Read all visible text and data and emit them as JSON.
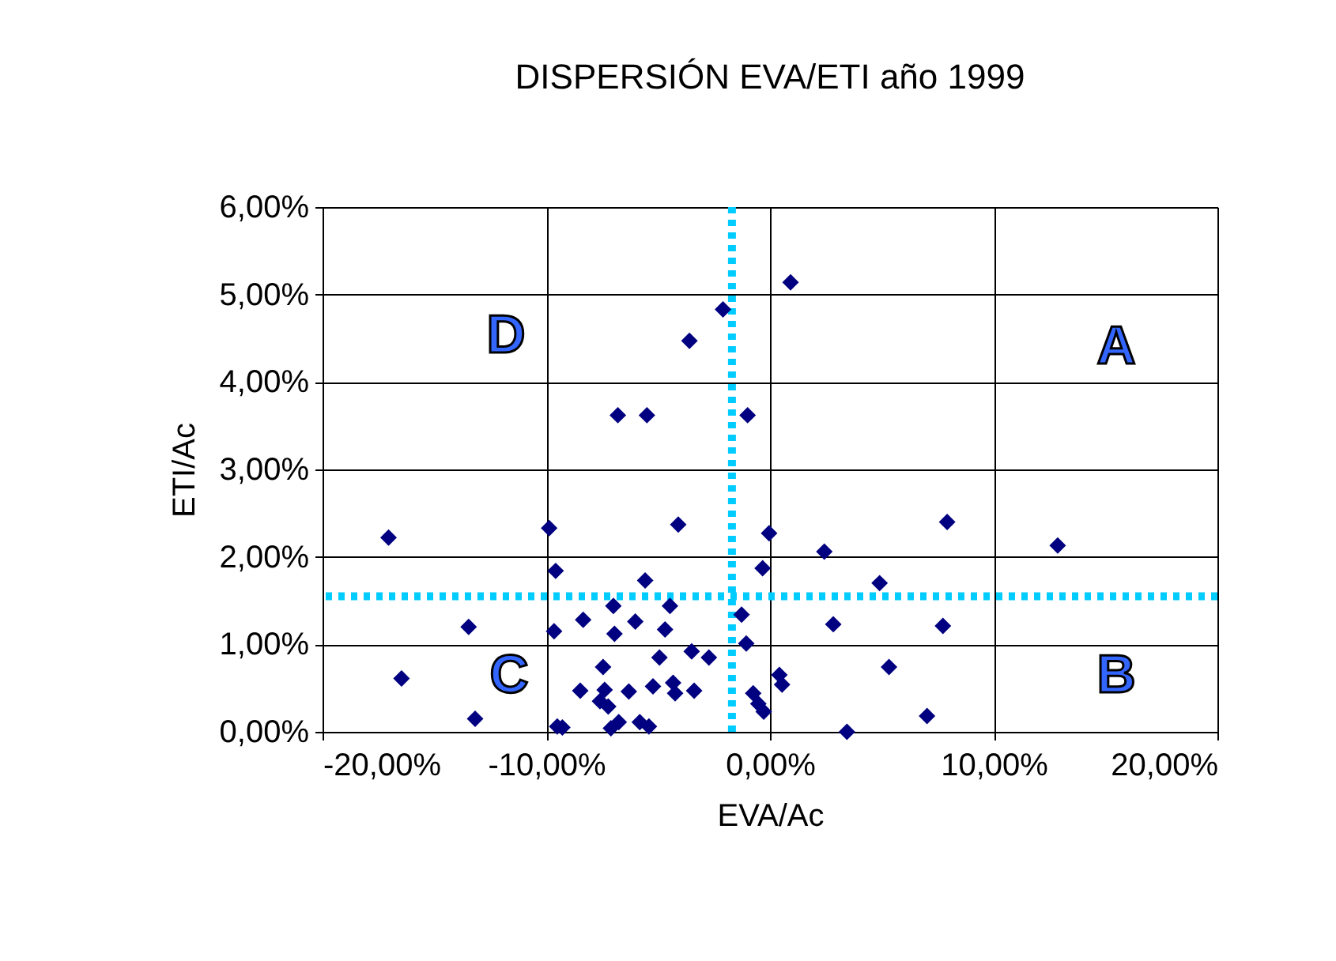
{
  "chart_data": {
    "type": "scatter",
    "title": "DISPERSIÓN EVA/ETI año 1999",
    "xlabel": "EVA/Ac",
    "ylabel": "ETI/Ac",
    "x": [
      0.92,
      -2.1,
      -3.6,
      -6.8,
      -5.5,
      -1.0,
      -17.05,
      -9.87,
      -4.1,
      -0.04,
      -9.58,
      -0.33,
      -5.58,
      -7.0,
      -4.47,
      -1.27,
      -8.35,
      -6.02,
      -13.47,
      -9.65,
      -6.95,
      -4.69,
      -1.06,
      -3.5,
      -2.73,
      -4.94,
      -7.46,
      -16.47,
      0.42,
      0.54,
      -8.48,
      -7.39,
      -6.31,
      -5.23,
      -4.33,
      -4.24,
      -3.39,
      -7.6,
      -7.23,
      -0.75,
      -0.28,
      -0.52,
      -13.18,
      -9.51,
      -9.28,
      -7.11,
      -6.76,
      -5.82,
      -5.41,
      7.92,
      12.86,
      2.43,
      4.9,
      2.83,
      7.73,
      5.32,
      7.02,
      3.44
    ],
    "series": [
      {
        "color": "#000080",
        "values": [
          5.14,
          4.83,
          4.47,
          3.62,
          3.62,
          3.62,
          2.22,
          2.33,
          2.37,
          2.27,
          1.84,
          1.87,
          1.73,
          1.44,
          1.44,
          1.34,
          1.28,
          1.26,
          1.2,
          1.15,
          1.12,
          1.17,
          1.01,
          0.92,
          0.85,
          0.85,
          0.74,
          0.61,
          0.65,
          0.54,
          0.47,
          0.48,
          0.46,
          0.52,
          0.56,
          0.44,
          0.47,
          0.35,
          0.29,
          0.44,
          0.23,
          0.32,
          0.15,
          0.06,
          0.05,
          0.04,
          0.11,
          0.11,
          0.06,
          2.4,
          2.13,
          2.06,
          1.7,
          1.23,
          1.21,
          0.74,
          0.18,
          0.0
        ]
      }
    ],
    "xlim": [
      -20,
      20
    ],
    "ylim": [
      0,
      6
    ],
    "xticks": [
      {
        "value": -20,
        "label": "-20,00%"
      },
      {
        "value": -10,
        "label": "-10,00%"
      },
      {
        "value": 0,
        "label": "0,00%"
      },
      {
        "value": 10,
        "label": "10,00%"
      },
      {
        "value": 20,
        "label": "20,00%"
      }
    ],
    "yticks": [
      {
        "value": 0,
        "label": "0,00%"
      },
      {
        "value": 1,
        "label": "1,00%"
      },
      {
        "value": 2,
        "label": "2,00%"
      },
      {
        "value": 3,
        "label": "3,00%"
      },
      {
        "value": 4,
        "label": "4,00%"
      },
      {
        "value": 5,
        "label": "5,00%"
      },
      {
        "value": 6,
        "label": "6,00%"
      }
    ],
    "ref_lines": [
      {
        "axis": "x",
        "value": -1.7,
        "color": "#00ccff",
        "line_style": "dotted"
      },
      {
        "axis": "y",
        "value": 1.55,
        "color": "#00ccff",
        "line_style": "dotted"
      }
    ],
    "annotations": [
      "D",
      "A",
      "C",
      "B"
    ],
    "grid": true,
    "marker": "diamond",
    "legend": false
  }
}
